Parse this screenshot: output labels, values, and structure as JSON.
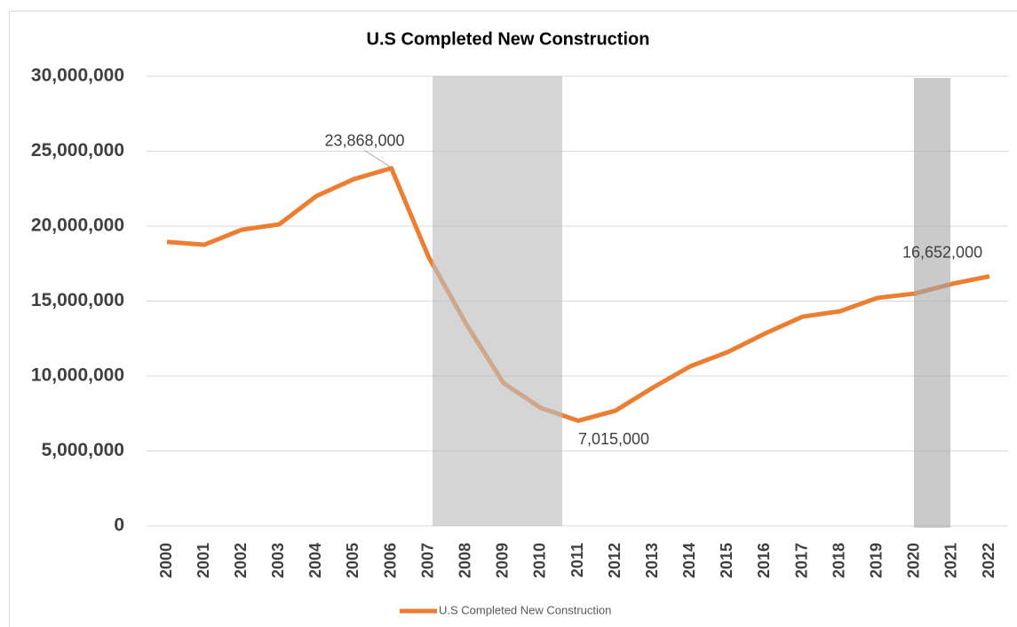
{
  "chart_data": {
    "type": "line",
    "title": "U.S Completed New Construction",
    "categories": [
      "2000",
      "2001",
      "2002",
      "2003",
      "2004",
      "2005",
      "2006",
      "2007",
      "2008",
      "2009",
      "2010",
      "2011",
      "2012",
      "2013",
      "2014",
      "2015",
      "2016",
      "2017",
      "2018",
      "2019",
      "2020",
      "2021",
      "2022"
    ],
    "series": [
      {
        "name": "U.S Completed New Construction",
        "color": "#ed7d31",
        "values": [
          18950000,
          18760000,
          19760000,
          20120000,
          22010000,
          23140000,
          23868000,
          17930000,
          13490000,
          9530000,
          7870000,
          7015000,
          7690000,
          9230000,
          10650000,
          11600000,
          12840000,
          13960000,
          14320000,
          15210000,
          15500000,
          16150000,
          16652000
        ],
        "value_labels": [
          null,
          null,
          null,
          null,
          null,
          null,
          "23,868,000",
          null,
          null,
          null,
          null,
          "7,015,000",
          null,
          null,
          null,
          null,
          null,
          null,
          null,
          null,
          null,
          null,
          "16,652,000"
        ]
      }
    ],
    "ylim": [
      0,
      30000000
    ],
    "yticks": [
      0,
      {
        "value": 5000000,
        "label": "5,000,000"
      },
      {
        "value": 10000000,
        "label": "10,000,000"
      },
      {
        "value": 15000000,
        "label": "15,000,000"
      },
      {
        "value": 20000000,
        "label": "20,000,000"
      },
      {
        "value": 25000000,
        "label": "25,000,000"
      },
      {
        "value": 30000000,
        "label": "30,000,000"
      }
    ],
    "grid": true,
    "legend": "bottom"
  }
}
